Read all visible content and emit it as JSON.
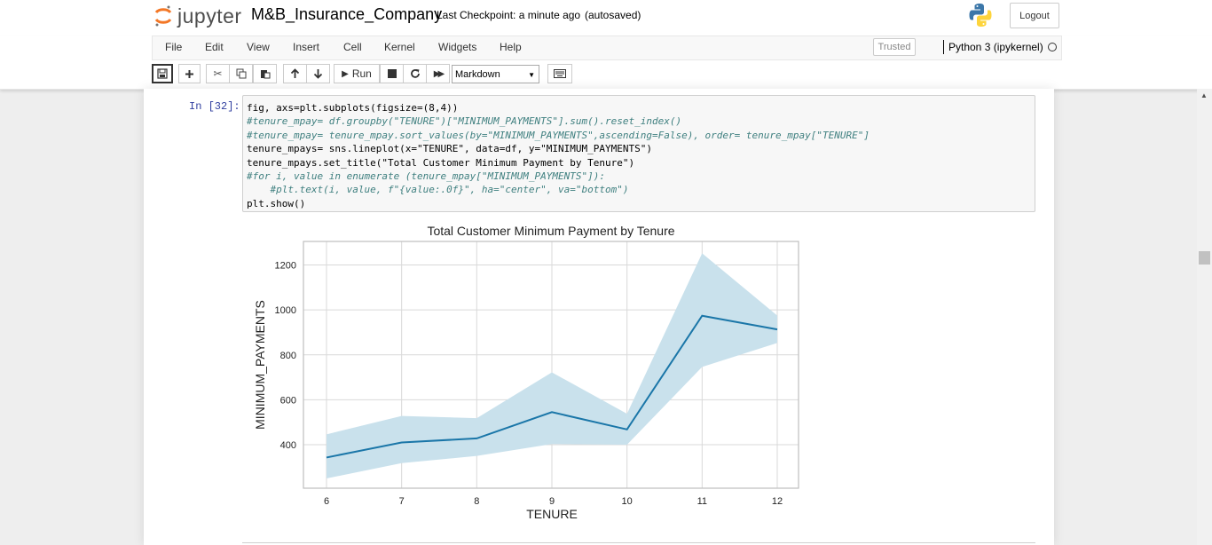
{
  "header": {
    "logo_text": "jupyter",
    "notebook_title": "M&B_Insurance_Company",
    "checkpoint": "Last Checkpoint: a minute ago",
    "autosave": "(autosaved)",
    "logout_label": "Logout"
  },
  "menu": {
    "items": [
      "File",
      "Edit",
      "View",
      "Insert",
      "Cell",
      "Kernel",
      "Widgets",
      "Help"
    ],
    "trusted_label": "Trusted",
    "kernel_label": "Python 3 (ipykernel)"
  },
  "toolbar": {
    "run_label": "Run",
    "cell_type": "Markdown"
  },
  "cell": {
    "prompt": "In [32]:",
    "code_lines": [
      "fig, axs=plt.subplots(figsize=(8,4))",
      "#tenure_mpay= df.groupby(\"TENURE\")[\"MINIMUM_PAYMENTS\"].sum().reset_index()",
      "#tenure_mpay= tenure_mpay.sort_values(by=\"MINIMUM_PAYMENTS\",ascending=False), order= tenure_mpay[\"TENURE\"]",
      "tenure_mpays= sns.lineplot(x=\"TENURE\", data=df, y=\"MINIMUM_PAYMENTS\")",
      "tenure_mpays.set_title(\"Total Customer Minimum Payment by Tenure\")",
      "#for i, value in enumerate (tenure_mpay[\"MINIMUM_PAYMENTS\"]):",
      "    #plt.text(i, value, f\"{value:.0f}\", ha=\"center\", va=\"bottom\")",
      "plt.show()"
    ]
  },
  "chart_data": {
    "type": "line",
    "title": "Total Customer Minimum Payment by Tenure",
    "xlabel": "TENURE",
    "ylabel": "MINIMUM_PAYMENTS",
    "x": [
      6,
      7,
      8,
      9,
      10,
      11,
      12
    ],
    "series": [
      {
        "values": [
          343,
          410,
          428,
          545,
          468,
          974,
          913
        ],
        "ci_low": [
          250,
          318,
          350,
          403,
          400,
          746,
          853
        ],
        "ci_high": [
          446,
          528,
          518,
          722,
          538,
          1252,
          975
        ]
      }
    ],
    "xlim": [
      6,
      12
    ],
    "ylim": [
      200,
      1300
    ],
    "yticks": [
      400,
      600,
      800,
      1000,
      1200
    ],
    "xticks": [
      6,
      7,
      8,
      9,
      10,
      11,
      12
    ],
    "grid": true,
    "line_color": "#1a76a8",
    "band_color": "#c9e1ec"
  }
}
